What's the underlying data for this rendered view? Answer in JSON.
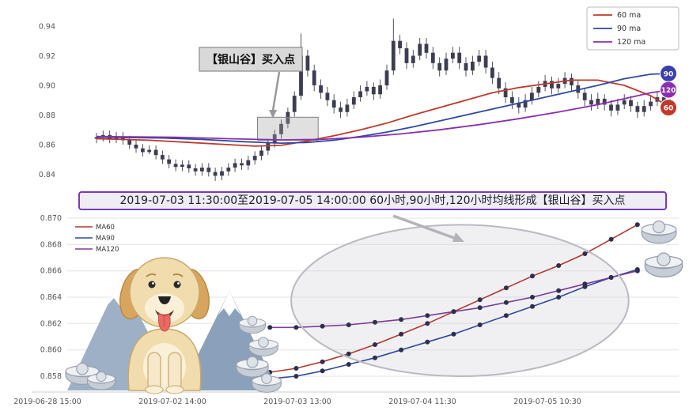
{
  "banner": {
    "text": "2019-07-03 11:30:00至2019-07-05 14:00:00 60小时,90小时,120小时均线形成【银山谷】买入点"
  },
  "chart_data": [
    {
      "type": "candlestick",
      "title": "",
      "ylim": [
        0.832,
        0.948
      ],
      "y_ticks": [
        0.84,
        0.86,
        0.88,
        0.9,
        0.92,
        0.94
      ],
      "grid": false,
      "legend_position": "top-right",
      "candle_color": "#3d3d52",
      "legend": [
        {
          "name": "60 ma",
          "color": "#c0392b"
        },
        {
          "name": "90 ma",
          "color": "#2e4a9e"
        },
        {
          "name": "120 ma",
          "color": "#8a2fae"
        }
      ],
      "annotation": {
        "text": "【银山谷】买入点"
      },
      "highlight_box": {
        "from_index": 25,
        "to_index": 33,
        "top": 0.8785,
        "bottom": 0.863
      },
      "end_badges": [
        {
          "label": "90",
          "color": "#3a3fae",
          "value": 0.908
        },
        {
          "label": "120",
          "color": "#8a2fae",
          "value": 0.897
        },
        {
          "label": "60",
          "color": "#c0392b",
          "value": 0.885
        }
      ],
      "candles_ohlc": [
        [
          0.864,
          0.868,
          0.861,
          0.865
        ],
        [
          0.865,
          0.8695,
          0.862,
          0.8665
        ],
        [
          0.8665,
          0.8695,
          0.861,
          0.864
        ],
        [
          0.864,
          0.8685,
          0.861,
          0.8655
        ],
        [
          0.8655,
          0.8685,
          0.86,
          0.863
        ],
        [
          0.863,
          0.866,
          0.857,
          0.86
        ],
        [
          0.86,
          0.863,
          0.8545,
          0.8575
        ],
        [
          0.8575,
          0.8605,
          0.852,
          0.855
        ],
        [
          0.855,
          0.8595,
          0.8535,
          0.8565
        ],
        [
          0.8565,
          0.8595,
          0.85,
          0.853
        ],
        [
          0.853,
          0.856,
          0.847,
          0.85
        ],
        [
          0.85,
          0.853,
          0.844,
          0.847
        ],
        [
          0.847,
          0.85,
          0.842,
          0.845
        ],
        [
          0.845,
          0.8495,
          0.842,
          0.8465
        ],
        [
          0.8465,
          0.8495,
          0.841,
          0.844
        ],
        [
          0.844,
          0.847,
          0.839,
          0.842
        ],
        [
          0.842,
          0.8475,
          0.839,
          0.8445
        ],
        [
          0.8445,
          0.8475,
          0.8385,
          0.8415
        ],
        [
          0.8415,
          0.8445,
          0.8355,
          0.839
        ],
        [
          0.839,
          0.845,
          0.836,
          0.842
        ],
        [
          0.842,
          0.8475,
          0.839,
          0.8445
        ],
        [
          0.8445,
          0.8505,
          0.8415,
          0.8475
        ],
        [
          0.8475,
          0.8505,
          0.843,
          0.846
        ],
        [
          0.846,
          0.8525,
          0.843,
          0.8495
        ],
        [
          0.8495,
          0.8555,
          0.8465,
          0.8525
        ],
        [
          0.8525,
          0.859,
          0.8495,
          0.856
        ],
        [
          0.856,
          0.864,
          0.853,
          0.861
        ],
        [
          0.861,
          0.87,
          0.858,
          0.867
        ],
        [
          0.867,
          0.877,
          0.864,
          0.874
        ],
        [
          0.874,
          0.885,
          0.871,
          0.882
        ],
        [
          0.882,
          0.896,
          0.879,
          0.893
        ],
        [
          0.893,
          0.935,
          0.89,
          0.92
        ],
        [
          0.92,
          0.924,
          0.906,
          0.91
        ],
        [
          0.91,
          0.914,
          0.896,
          0.9
        ],
        [
          0.9,
          0.904,
          0.891,
          0.895
        ],
        [
          0.895,
          0.899,
          0.886,
          0.89
        ],
        [
          0.89,
          0.894,
          0.881,
          0.885
        ],
        [
          0.885,
          0.889,
          0.878,
          0.882
        ],
        [
          0.882,
          0.891,
          0.879,
          0.887
        ],
        [
          0.887,
          0.896,
          0.884,
          0.892
        ],
        [
          0.892,
          0.9,
          0.889,
          0.896
        ],
        [
          0.896,
          0.903,
          0.893,
          0.899
        ],
        [
          0.899,
          0.902,
          0.89,
          0.894
        ],
        [
          0.894,
          0.904,
          0.891,
          0.9
        ],
        [
          0.9,
          0.914,
          0.897,
          0.91
        ],
        [
          0.91,
          0.945,
          0.907,
          0.93
        ],
        [
          0.93,
          0.934,
          0.921,
          0.925
        ],
        [
          0.925,
          0.929,
          0.911,
          0.915
        ],
        [
          0.915,
          0.924,
          0.912,
          0.92
        ],
        [
          0.92,
          0.932,
          0.917,
          0.928
        ],
        [
          0.928,
          0.932,
          0.918,
          0.922
        ],
        [
          0.922,
          0.926,
          0.911,
          0.915
        ],
        [
          0.915,
          0.919,
          0.906,
          0.91
        ],
        [
          0.91,
          0.922,
          0.907,
          0.918
        ],
        [
          0.918,
          0.926,
          0.915,
          0.922
        ],
        [
          0.922,
          0.926,
          0.911,
          0.915
        ],
        [
          0.915,
          0.919,
          0.906,
          0.91
        ],
        [
          0.91,
          0.92,
          0.907,
          0.916
        ],
        [
          0.916,
          0.924,
          0.913,
          0.92
        ],
        [
          0.92,
          0.924,
          0.908,
          0.912
        ],
        [
          0.912,
          0.916,
          0.901,
          0.905
        ],
        [
          0.905,
          0.909,
          0.894,
          0.898
        ],
        [
          0.898,
          0.902,
          0.888,
          0.892
        ],
        [
          0.892,
          0.896,
          0.884,
          0.888
        ],
        [
          0.888,
          0.892,
          0.881,
          0.885
        ],
        [
          0.885,
          0.894,
          0.882,
          0.89
        ],
        [
          0.89,
          0.899,
          0.887,
          0.895
        ],
        [
          0.895,
          0.903,
          0.892,
          0.899
        ],
        [
          0.899,
          0.907,
          0.896,
          0.903
        ],
        [
          0.903,
          0.906,
          0.894,
          0.898
        ],
        [
          0.898,
          0.905,
          0.895,
          0.901
        ],
        [
          0.901,
          0.909,
          0.898,
          0.905
        ],
        [
          0.905,
          0.908,
          0.896,
          0.9
        ],
        [
          0.9,
          0.903,
          0.891,
          0.895
        ],
        [
          0.895,
          0.898,
          0.886,
          0.89
        ],
        [
          0.89,
          0.894,
          0.883,
          0.887
        ],
        [
          0.887,
          0.895,
          0.884,
          0.891
        ],
        [
          0.891,
          0.894,
          0.883,
          0.887
        ],
        [
          0.887,
          0.89,
          0.879,
          0.883
        ],
        [
          0.883,
          0.891,
          0.88,
          0.887
        ],
        [
          0.887,
          0.894,
          0.884,
          0.89
        ],
        [
          0.89,
          0.893,
          0.882,
          0.886
        ],
        [
          0.886,
          0.889,
          0.878,
          0.882
        ],
        [
          0.882,
          0.89,
          0.879,
          0.886
        ],
        [
          0.886,
          0.893,
          0.883,
          0.889
        ],
        [
          0.889,
          0.896,
          0.886,
          0.892
        ],
        [
          0.892,
          0.895,
          0.884,
          0.888
        ],
        [
          0.888,
          0.891,
          0.881,
          0.885
        ]
      ],
      "ma_series": [
        {
          "name": "60 ma",
          "color": "#c0392b",
          "points": [
            [
              0,
              0.864
            ],
            [
              8,
              0.863
            ],
            [
              14,
              0.8615
            ],
            [
              20,
              0.86
            ],
            [
              24,
              0.859
            ],
            [
              28,
              0.8595
            ],
            [
              32,
              0.8625
            ],
            [
              36,
              0.866
            ],
            [
              40,
              0.87
            ],
            [
              44,
              0.8745
            ],
            [
              48,
              0.88
            ],
            [
              52,
              0.885
            ],
            [
              56,
              0.89
            ],
            [
              60,
              0.895
            ],
            [
              64,
              0.8985
            ],
            [
              68,
              0.901
            ],
            [
              72,
              0.9035
            ],
            [
              76,
              0.9035
            ],
            [
              80,
              0.9
            ],
            [
              84,
              0.893
            ],
            [
              87,
              0.885
            ]
          ]
        },
        {
          "name": "90 ma",
          "color": "#2e4a9e",
          "points": [
            [
              0,
              0.865
            ],
            [
              10,
              0.8645
            ],
            [
              16,
              0.8635
            ],
            [
              22,
              0.862
            ],
            [
              28,
              0.861
            ],
            [
              32,
              0.8615
            ],
            [
              36,
              0.863
            ],
            [
              40,
              0.8655
            ],
            [
              44,
              0.8685
            ],
            [
              48,
              0.872
            ],
            [
              52,
              0.876
            ],
            [
              56,
              0.88
            ],
            [
              60,
              0.884
            ],
            [
              64,
              0.888
            ],
            [
              68,
              0.892
            ],
            [
              72,
              0.896
            ],
            [
              76,
              0.9
            ],
            [
              80,
              0.9045
            ],
            [
              84,
              0.9075
            ],
            [
              87,
              0.908
            ]
          ]
        },
        {
          "name": "120 ma",
          "color": "#8a2fae",
          "points": [
            [
              0,
              0.8655
            ],
            [
              12,
              0.865
            ],
            [
              20,
              0.864
            ],
            [
              28,
              0.8632
            ],
            [
              34,
              0.8635
            ],
            [
              40,
              0.865
            ],
            [
              46,
              0.8672
            ],
            [
              52,
              0.87
            ],
            [
              58,
              0.8735
            ],
            [
              64,
              0.8775
            ],
            [
              70,
              0.882
            ],
            [
              76,
              0.887
            ],
            [
              80,
              0.891
            ],
            [
              84,
              0.895
            ],
            [
              87,
              0.897
            ]
          ]
        }
      ]
    },
    {
      "type": "line",
      "title": "",
      "ylim": [
        0.8568,
        0.8705
      ],
      "y_ticks": [
        0.858,
        0.86,
        0.862,
        0.864,
        0.866,
        0.868,
        0.87
      ],
      "x_ticks": [
        "2019-06-28 15:00",
        "2019-07-02 14:00",
        "2019-07-03 13:00",
        "2019-07-04 11:30",
        "2019-07-05 10:30"
      ],
      "grid": true,
      "legend_position": "top-left",
      "marker_color": "#2e2e4e",
      "t": [
        1.78,
        1.99,
        2.2,
        2.41,
        2.62,
        2.83,
        3.04,
        3.25,
        3.46,
        3.67,
        3.88,
        4.09,
        4.3,
        4.51,
        4.72
      ],
      "series": [
        {
          "name": "MA60",
          "color": "#b03a2e",
          "values": [
            0.8583,
            0.8586,
            0.8591,
            0.8597,
            0.8604,
            0.8612,
            0.862,
            0.8629,
            0.8638,
            0.8647,
            0.8656,
            0.8664,
            0.8673,
            0.8684,
            0.8695
          ]
        },
        {
          "name": "MA90",
          "color": "#2e4a9e",
          "values": [
            0.8578,
            0.858,
            0.8584,
            0.8589,
            0.8594,
            0.86,
            0.8606,
            0.8612,
            0.8619,
            0.8626,
            0.8633,
            0.864,
            0.8648,
            0.8655,
            0.8661
          ]
        },
        {
          "name": "MA120",
          "color": "#7d3c98",
          "values": [
            0.8617,
            0.8617,
            0.8618,
            0.8619,
            0.8621,
            0.8623,
            0.8626,
            0.8629,
            0.8632,
            0.8636,
            0.864,
            0.8645,
            0.865,
            0.8655,
            0.866
          ]
        }
      ],
      "highlight_region": {
        "t0": 1.95,
        "t1": 4.65,
        "v0": 0.858,
        "v1": 0.8695
      }
    }
  ]
}
